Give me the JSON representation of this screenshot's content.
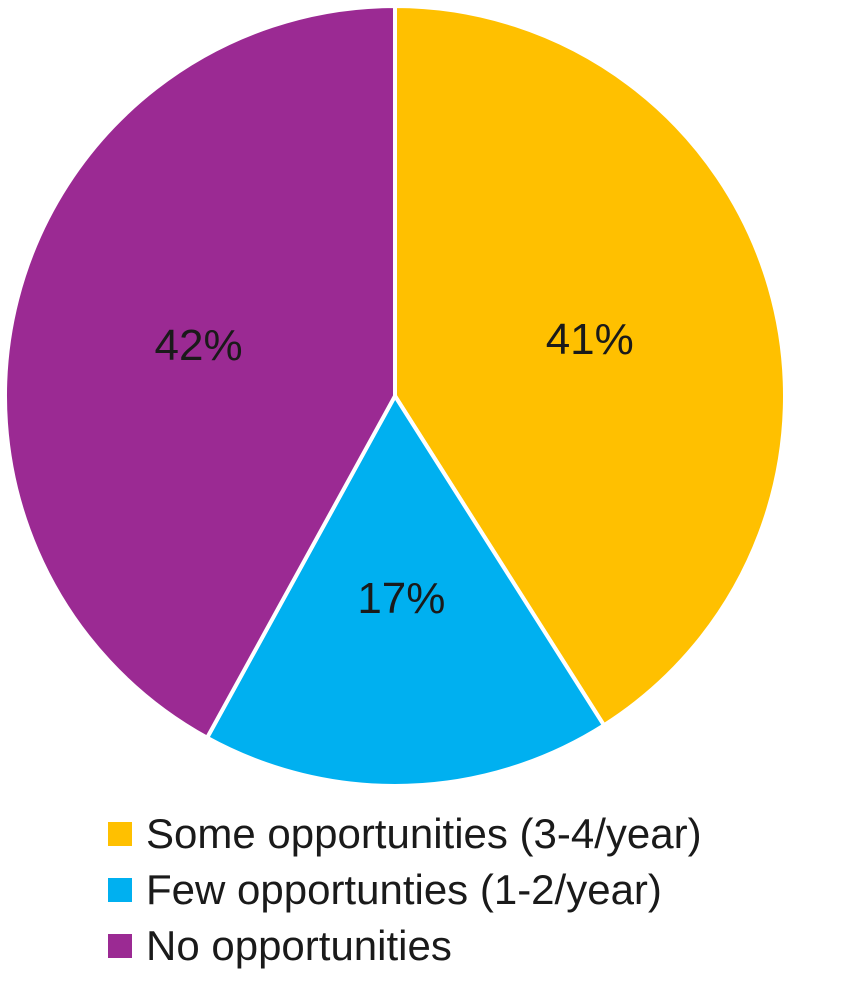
{
  "chart_data": {
    "type": "pie",
    "title": "",
    "slices": [
      {
        "name": "Some opportunities (3-4/year)",
        "value": 41,
        "label": "41%",
        "color": "#FFC000"
      },
      {
        "name": "Few opportunties (1-2/year)",
        "value": 17,
        "label": "17%",
        "color": "#00B0F0"
      },
      {
        "name": "No opportunities",
        "value": 42,
        "label": "42%",
        "color": "#9B2A93"
      }
    ],
    "start_angle": "12 o'clock",
    "direction": "clockwise",
    "legend_position": "bottom"
  }
}
